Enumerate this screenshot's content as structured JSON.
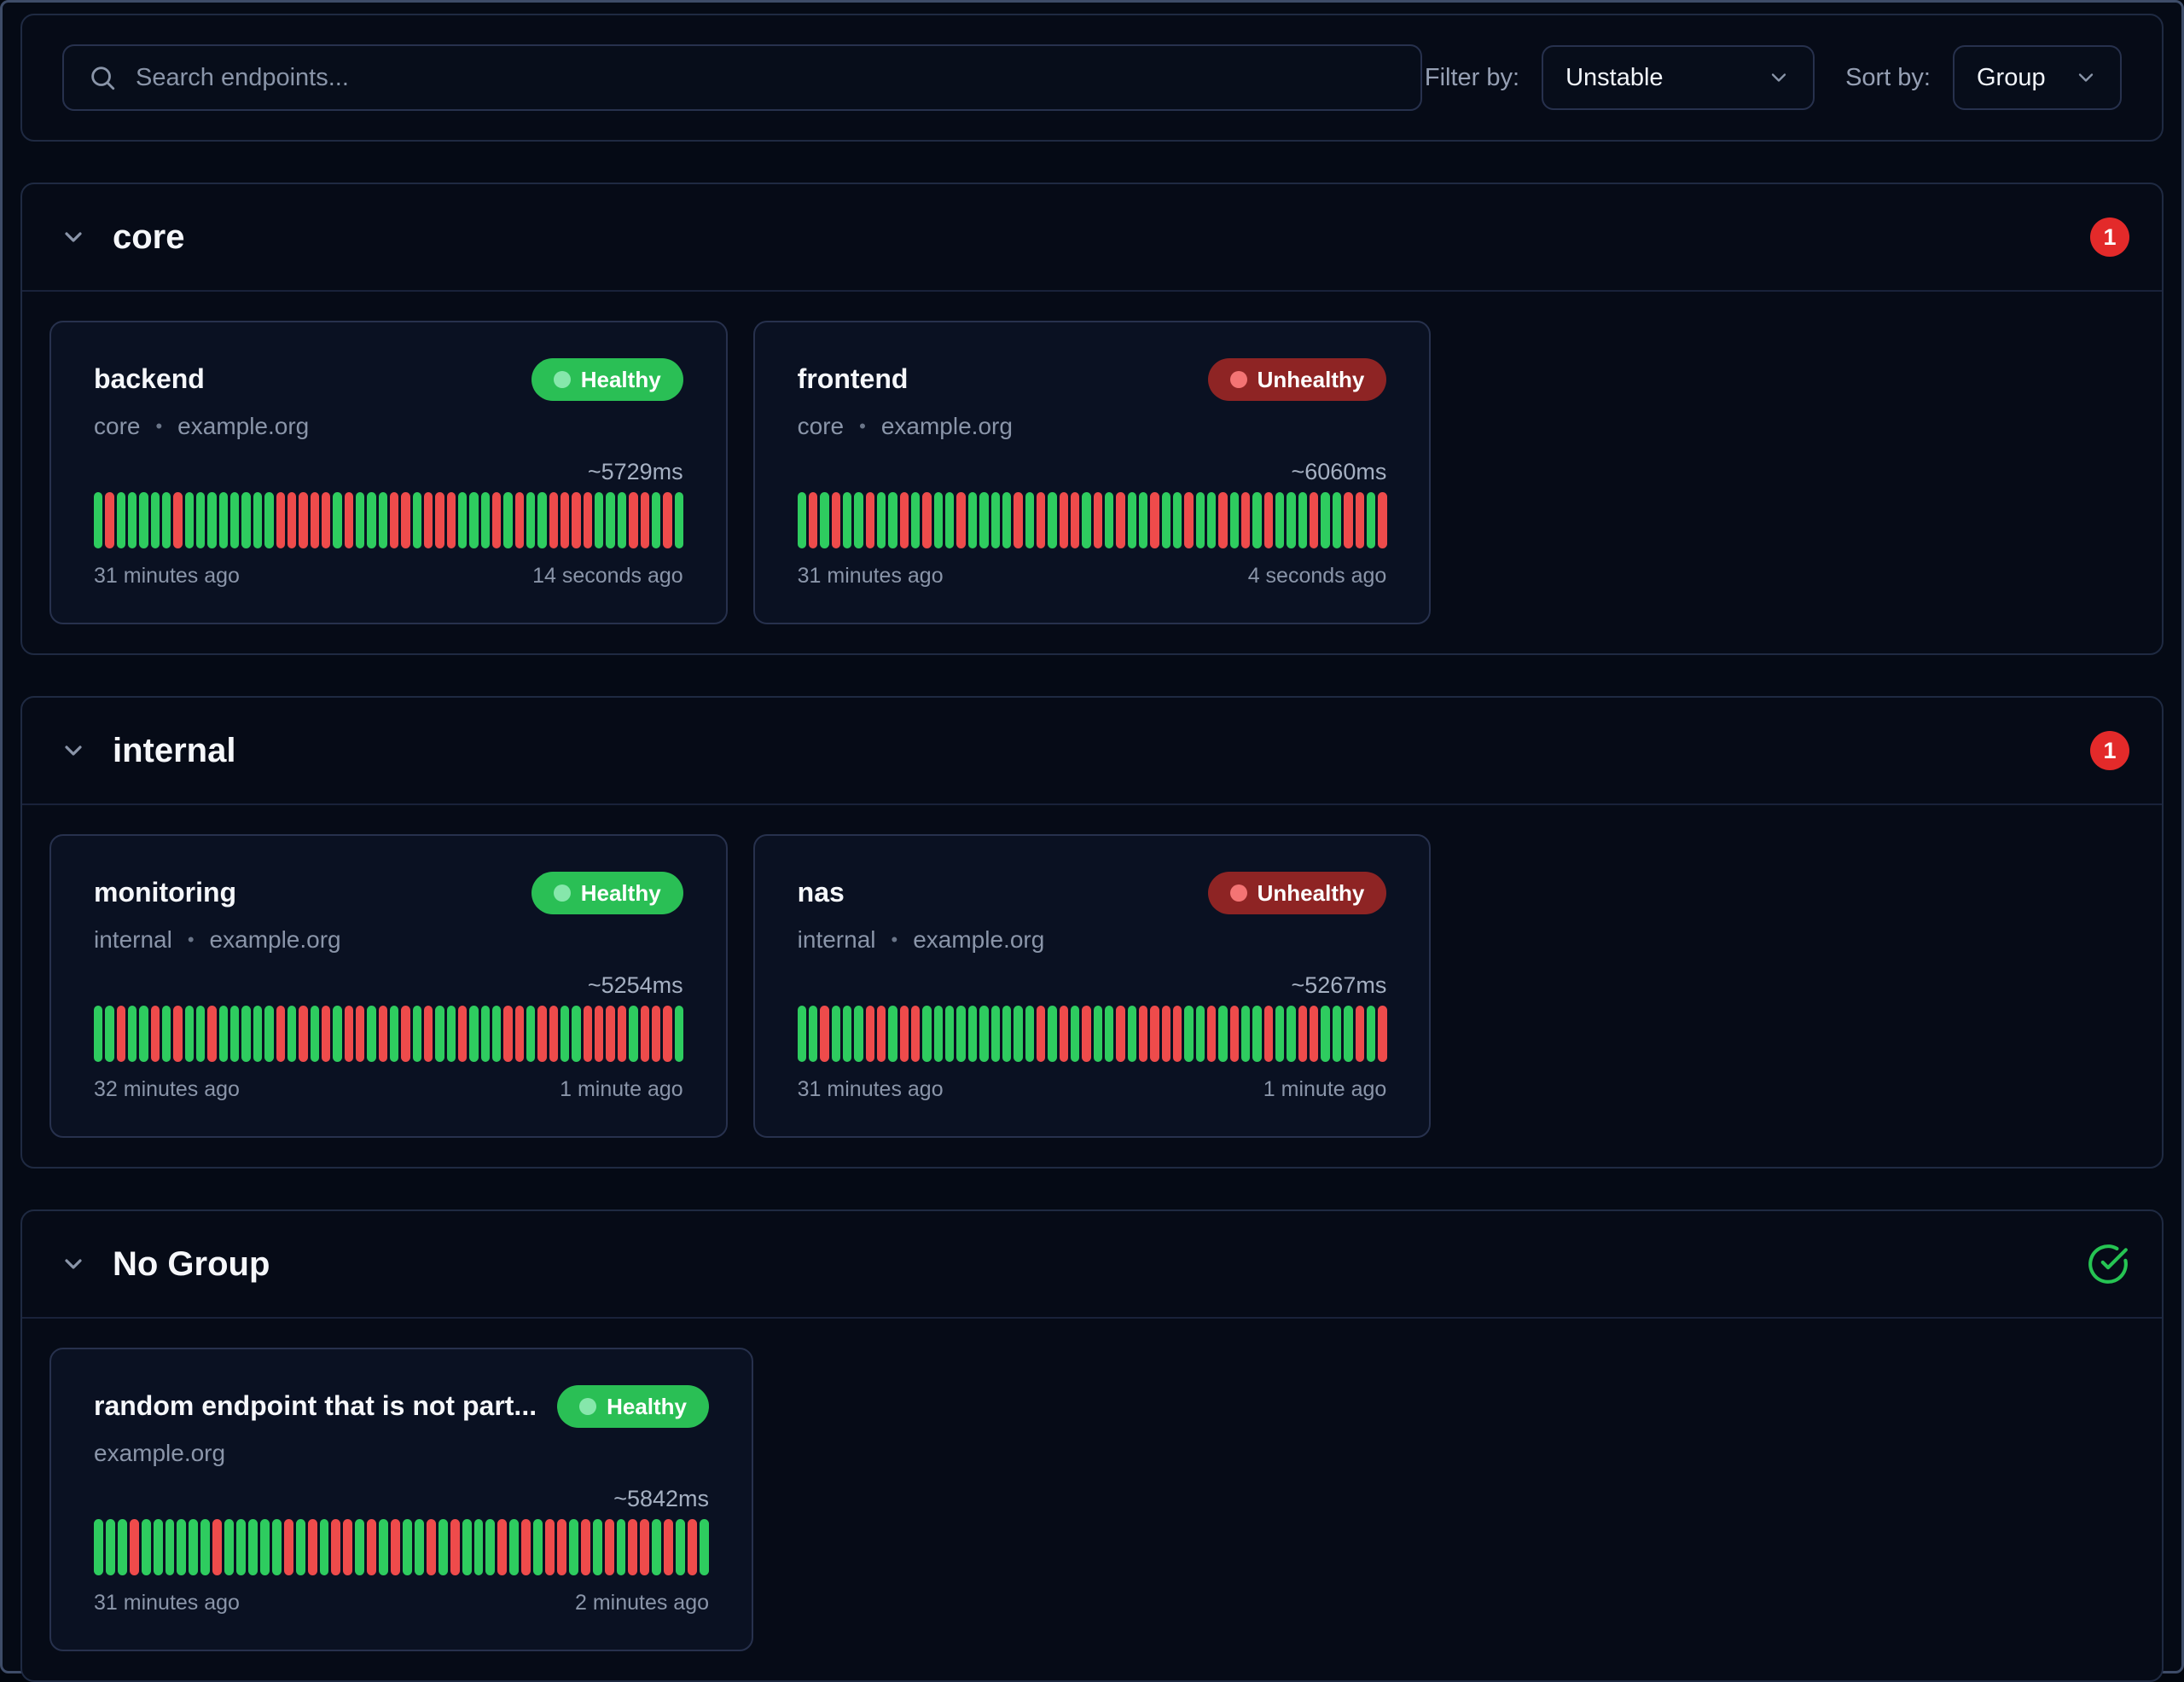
{
  "toolbar": {
    "search_placeholder": "Search endpoints...",
    "filter_label": "Filter by:",
    "filter_value": "Unstable",
    "sort_label": "Sort by:",
    "sort_value": "Group"
  },
  "separator": "•",
  "colors": {
    "bar_success": "#2ecc5f",
    "bar_failure": "#ee4b4b",
    "healthy_badge": "#2abf55",
    "unhealthy_badge": "#8e2424",
    "unhealthy_count_badge": "#e32a2a",
    "all_healthy_icon": "#26c453"
  },
  "groups": [
    {
      "name": "core",
      "unhealthy_count": "1",
      "endpoints": [
        {
          "name": "backend",
          "status": "Healthy",
          "group": "core",
          "host": "example.org",
          "response_time": "~5729ms",
          "first_result": "31 minutes ago",
          "last_result": "14 seconds ago",
          "history": "GRGGGGGRGGGGGGGGRRRRRGRGGGRRGRRRGGGRGRGGRRRRGGGRRGRG"
        },
        {
          "name": "frontend",
          "status": "Unhealthy",
          "group": "core",
          "host": "example.org",
          "response_time": "~6060ms",
          "first_result": "31 minutes ago",
          "last_result": "4 seconds ago",
          "history": "GRGRGGRGGRGRGGRGGGGRGRGRRGRGRGGRGGRGGRGRGRGGGRGGRRGR"
        }
      ]
    },
    {
      "name": "internal",
      "unhealthy_count": "1",
      "endpoints": [
        {
          "name": "monitoring",
          "status": "Healthy",
          "group": "internal",
          "host": "example.org",
          "response_time": "~5254ms",
          "first_result": "32 minutes ago",
          "last_result": "1 minute ago",
          "history": "GGRGGRGRGGRGGGGGRGRGRGRRGRGRGRGGRGGGRRGRRGGRRRRGRRRG"
        },
        {
          "name": "nas",
          "status": "Unhealthy",
          "group": "internal",
          "host": "example.org",
          "response_time": "~5267ms",
          "first_result": "31 minutes ago",
          "last_result": "1 minute ago",
          "history": "GGRGGGRRGRRGGGGGGGGGGRGRGRGGRGRRRRGGRGRGGRGGRRGGGRGR"
        }
      ]
    },
    {
      "name": "No Group",
      "all_healthy": true,
      "endpoints": [
        {
          "name": "random endpoint that is not part...",
          "status": "Healthy",
          "host": "example.org",
          "response_time": "~5842ms",
          "first_result": "31 minutes ago",
          "last_result": "2 minutes ago",
          "history": "GGGRGGGGGGRGGGGGRGRGRRGRGRGGRGRGGGRGRGRRGRGRGRRGRGRG"
        }
      ]
    }
  ]
}
